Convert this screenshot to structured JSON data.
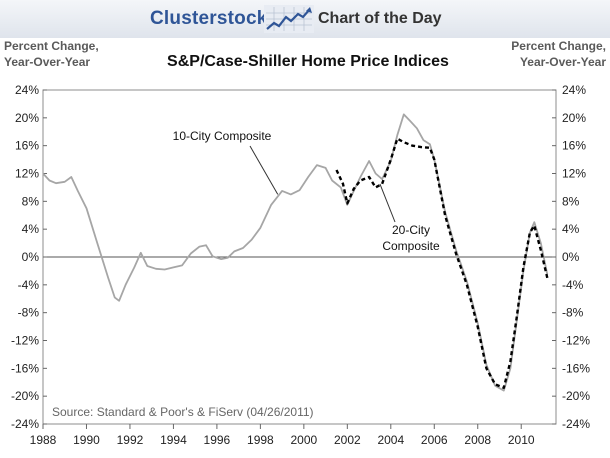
{
  "header": {
    "brand": "Clusterstock",
    "subtitle": "Chart of the Day",
    "logo_icon": "rising-line-chart-icon"
  },
  "chart_data": {
    "type": "line",
    "title": "S&P/Case-Shiller Home Price Indices",
    "ylabel_left": [
      "Percent Change,",
      "Year-Over-Year"
    ],
    "ylabel_right": [
      "Percent Change,",
      "Year-Over-Year"
    ],
    "xlim": [
      1988,
      2011.6
    ],
    "ylim": [
      -24,
      24
    ],
    "x_ticks": [
      1988,
      1990,
      1992,
      1994,
      1996,
      1998,
      2000,
      2002,
      2004,
      2006,
      2008,
      2010
    ],
    "y_ticks": [
      -24,
      -20,
      -16,
      -12,
      -8,
      -4,
      0,
      4,
      8,
      12,
      16,
      20,
      24
    ],
    "y_tick_labels": [
      "-24%",
      "-20%",
      "-16%",
      "-12%",
      "-8%",
      "-4%",
      "0%",
      "4%",
      "8%",
      "12%",
      "16%",
      "20%",
      "24%"
    ],
    "zero_line": true,
    "grid": false,
    "source": "Source: Standard & Poor's & FiServ (04/26/2011)",
    "annotations": [
      {
        "lines": [
          "10-City Composite"
        ],
        "series": "10-City Composite"
      },
      {
        "lines": [
          "20-City",
          "Composite"
        ],
        "series": "20-City Composite"
      }
    ],
    "series": [
      {
        "name": "10-City Composite",
        "style": "solid",
        "color": "#a6a6a6",
        "points": [
          [
            1988.0,
            12.0
          ],
          [
            1988.3,
            11.0
          ],
          [
            1988.6,
            10.6
          ],
          [
            1989.0,
            10.8
          ],
          [
            1989.3,
            11.5
          ],
          [
            1989.6,
            9.5
          ],
          [
            1990.0,
            7.0
          ],
          [
            1990.5,
            2.0
          ],
          [
            1991.0,
            -3.0
          ],
          [
            1991.3,
            -5.8
          ],
          [
            1991.5,
            -6.3
          ],
          [
            1991.8,
            -4.0
          ],
          [
            1992.2,
            -1.5
          ],
          [
            1992.5,
            0.6
          ],
          [
            1992.8,
            -1.3
          ],
          [
            1993.2,
            -1.7
          ],
          [
            1993.6,
            -1.8
          ],
          [
            1994.0,
            -1.5
          ],
          [
            1994.4,
            -1.2
          ],
          [
            1994.8,
            0.5
          ],
          [
            1995.2,
            1.5
          ],
          [
            1995.5,
            1.7
          ],
          [
            1995.8,
            0.1
          ],
          [
            1996.2,
            -0.3
          ],
          [
            1996.5,
            -0.1
          ],
          [
            1996.8,
            0.8
          ],
          [
            1997.2,
            1.3
          ],
          [
            1997.6,
            2.5
          ],
          [
            1998.0,
            4.2
          ],
          [
            1998.5,
            7.5
          ],
          [
            1999.0,
            9.5
          ],
          [
            1999.4,
            9.0
          ],
          [
            1999.8,
            9.6
          ],
          [
            2000.2,
            11.5
          ],
          [
            2000.6,
            13.2
          ],
          [
            2001.0,
            12.8
          ],
          [
            2001.3,
            11.0
          ],
          [
            2001.7,
            10.0
          ],
          [
            2002.0,
            7.5
          ],
          [
            2002.3,
            9.5
          ],
          [
            2002.6,
            11.5
          ],
          [
            2003.0,
            13.8
          ],
          [
            2003.3,
            12.0
          ],
          [
            2003.6,
            11.2
          ],
          [
            2004.0,
            13.8
          ],
          [
            2004.3,
            17.5
          ],
          [
            2004.6,
            20.5
          ],
          [
            2004.9,
            19.5
          ],
          [
            2005.2,
            18.5
          ],
          [
            2005.5,
            16.8
          ],
          [
            2005.8,
            16.2
          ],
          [
            2006.0,
            14.0
          ],
          [
            2006.5,
            6.5
          ],
          [
            2007.0,
            1.0
          ],
          [
            2007.5,
            -3.5
          ],
          [
            2008.0,
            -9.5
          ],
          [
            2008.4,
            -15.5
          ],
          [
            2008.8,
            -18.5
          ],
          [
            2009.2,
            -19.2
          ],
          [
            2009.5,
            -16.0
          ],
          [
            2009.8,
            -9.0
          ],
          [
            2010.1,
            -2.0
          ],
          [
            2010.4,
            3.5
          ],
          [
            2010.6,
            5.0
          ],
          [
            2010.9,
            2.0
          ],
          [
            2011.2,
            -2.5
          ]
        ]
      },
      {
        "name": "20-City Composite",
        "style": "dashed",
        "color": "#000000",
        "points": [
          [
            2001.5,
            12.5
          ],
          [
            2001.8,
            10.5
          ],
          [
            2002.0,
            7.7
          ],
          [
            2002.3,
            9.8
          ],
          [
            2002.6,
            11.0
          ],
          [
            2003.0,
            11.5
          ],
          [
            2003.3,
            10.0
          ],
          [
            2003.6,
            10.5
          ],
          [
            2004.0,
            14.0
          ],
          [
            2004.3,
            17.0
          ],
          [
            2004.6,
            16.5
          ],
          [
            2005.0,
            16.0
          ],
          [
            2005.4,
            15.8
          ],
          [
            2005.8,
            15.7
          ],
          [
            2006.0,
            14.0
          ],
          [
            2006.5,
            6.0
          ],
          [
            2007.0,
            0.5
          ],
          [
            2007.5,
            -4.0
          ],
          [
            2008.0,
            -10.0
          ],
          [
            2008.4,
            -16.0
          ],
          [
            2008.8,
            -18.3
          ],
          [
            2009.2,
            -18.8
          ],
          [
            2009.5,
            -15.0
          ],
          [
            2009.8,
            -8.5
          ],
          [
            2010.1,
            -1.5
          ],
          [
            2010.4,
            3.5
          ],
          [
            2010.6,
            4.5
          ],
          [
            2010.9,
            1.0
          ],
          [
            2011.2,
            -3.0
          ]
        ]
      }
    ]
  }
}
